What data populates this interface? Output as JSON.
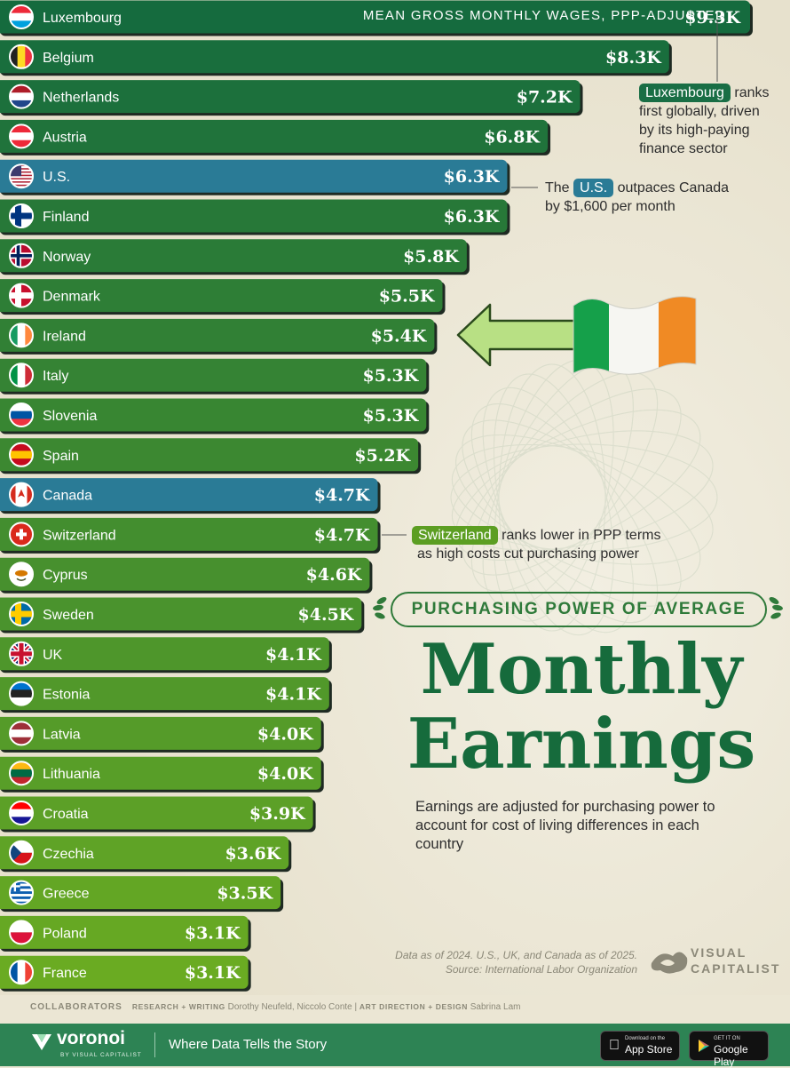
{
  "chart_data": {
    "type": "bar",
    "orientation": "horizontal",
    "title": "Monthly Earnings",
    "subtitle": "PURCHASING POWER OF AVERAGE",
    "metric_label": "MEAN GROSS MONTHLY WAGES, PPP-ADJUSTED",
    "unit": "$K",
    "categories": [
      "Luxembourg",
      "Belgium",
      "Netherlands",
      "Austria",
      "U.S.",
      "Finland",
      "Norway",
      "Denmark",
      "Ireland",
      "Italy",
      "Slovenia",
      "Spain",
      "Canada",
      "Switzerland",
      "Cyprus",
      "Sweden",
      "UK",
      "Estonia",
      "Latvia",
      "Lithuania",
      "Croatia",
      "Czechia",
      "Greece",
      "Poland",
      "France"
    ],
    "values": [
      9.3,
      8.3,
      7.2,
      6.8,
      6.3,
      6.3,
      5.8,
      5.5,
      5.4,
      5.3,
      5.3,
      5.2,
      4.7,
      4.7,
      4.6,
      4.5,
      4.1,
      4.1,
      4.0,
      4.0,
      3.9,
      3.6,
      3.5,
      3.1,
      3.1
    ],
    "value_labels": [
      "$9.3K",
      "$8.3K",
      "$7.2K",
      "$6.8K",
      "$6.3K",
      "$6.3K",
      "$5.8K",
      "$5.5K",
      "$5.4K",
      "$5.3K",
      "$5.3K",
      "$5.2K",
      "$4.7K",
      "$4.7K",
      "$4.6K",
      "$4.5K",
      "$4.1K",
      "$4.1K",
      "$4.0K",
      "$4.0K",
      "$3.9K",
      "$3.6K",
      "$3.5K",
      "$3.1K",
      "$3.1K"
    ],
    "highlighted": [
      "U.S.",
      "Canada"
    ],
    "flag_icons": [
      "luxembourg-flag-icon",
      "belgium-flag-icon",
      "netherlands-flag-icon",
      "austria-flag-icon",
      "us-flag-icon",
      "finland-flag-icon",
      "norway-flag-icon",
      "denmark-flag-icon",
      "ireland-flag-icon",
      "italy-flag-icon",
      "slovenia-flag-icon",
      "spain-flag-icon",
      "canada-flag-icon",
      "switzerland-flag-icon",
      "cyprus-flag-icon",
      "sweden-flag-icon",
      "uk-flag-icon",
      "estonia-flag-icon",
      "latvia-flag-icon",
      "lithuania-flag-icon",
      "croatia-flag-icon",
      "czechia-flag-icon",
      "greece-flag-icon",
      "poland-flag-icon",
      "france-flag-icon"
    ],
    "xlim": [
      0,
      9.3
    ],
    "grid": false,
    "legend": "none"
  },
  "colors": {
    "background": "#ebe6d4",
    "bar_dark_green": "#156b3e",
    "bar_light_green": "#6aab22",
    "bar_highlight_blue": "#2a7b96",
    "title_green": "#166b3c",
    "footer_green": "#2d8354"
  },
  "annotations": {
    "luxembourg": {
      "tag": "Luxembourg",
      "text": "ranks",
      "lines": [
        "first globally, driven",
        "by its high-paying",
        "finance sector"
      ]
    },
    "us": {
      "prefix": "The",
      "tag": "U.S.",
      "text": "outpaces Canada",
      "line2": "by $1,600 per month"
    },
    "switzerland": {
      "tag": "Switzerland",
      "text": "ranks lower in PPP terms",
      "line2": "as high costs cut purchasing power"
    }
  },
  "heading": {
    "subtitle": "PURCHASING POWER OF AVERAGE",
    "title_line1": "Monthly",
    "title_line2": "Earnings",
    "description": "Earnings are adjusted for purchasing power to account for cost of living differences in each country"
  },
  "source": {
    "line1": "Data as of 2024. U.S., UK, and Canada as of 2025.",
    "line2": "Source: International Labor Organization"
  },
  "brand": {
    "visual": "VISUAL",
    "capitalist": "CAPITALIST"
  },
  "credits": {
    "collaborators": "COLLABORATORS",
    "research_label": "RESEARCH + WRITING",
    "research_names": "Dorothy Neufeld, Niccolo Conte",
    "separator": "|",
    "art_label": "ART DIRECTION + DESIGN",
    "art_names": "Sabrina Lam"
  },
  "footer": {
    "logo": "voronoi",
    "logo_sub": "BY VISUAL CAPITALIST",
    "tagline": "Where Data Tells the Story",
    "app_store_small": "Download on the",
    "app_store": "App Store",
    "google_play_small": "GET IT ON",
    "google_play": "Google Play"
  }
}
